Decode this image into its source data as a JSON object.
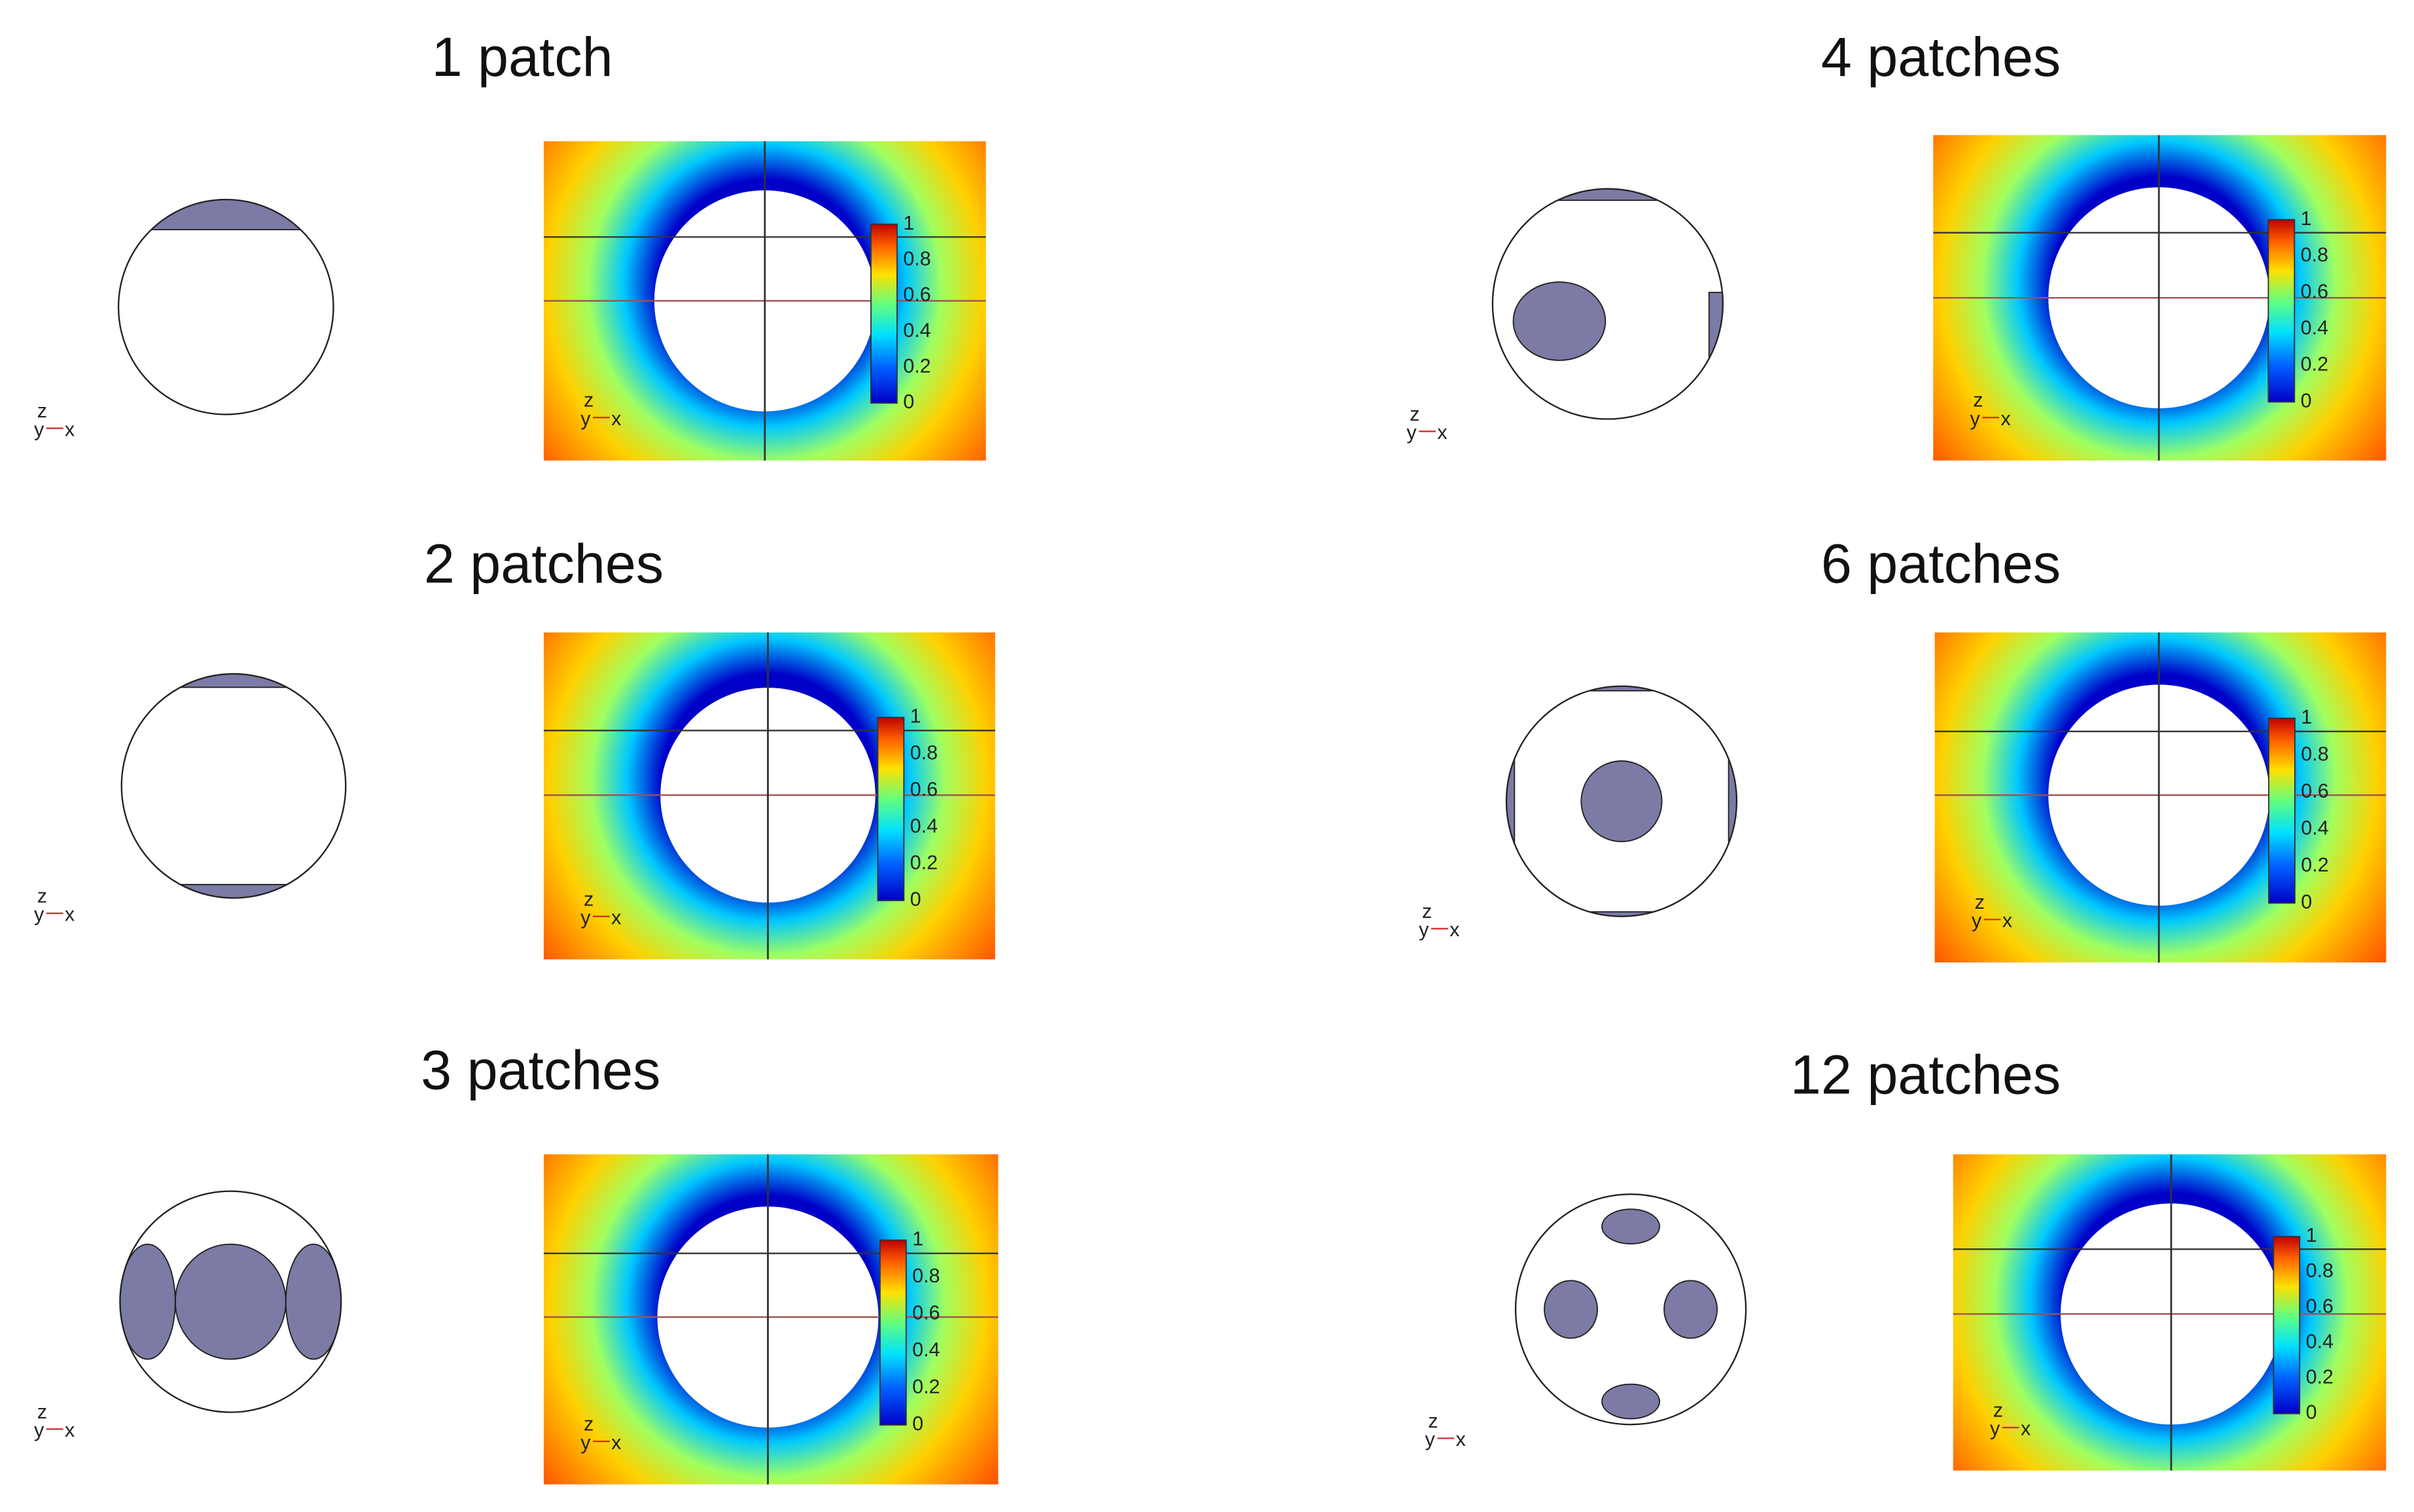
{
  "panels": [
    {
      "title": "1 patch"
    },
    {
      "title": "2 patches"
    },
    {
      "title": "3 patches"
    },
    {
      "title": "4 patches"
    },
    {
      "title": "6 patches"
    },
    {
      "title": "12 patches"
    }
  ],
  "colorbar": {
    "ticks": [
      0,
      0.2,
      0.4,
      0.6,
      0.8,
      1
    ]
  },
  "axes": {
    "z": "z",
    "y": "y",
    "x": "x"
  }
}
